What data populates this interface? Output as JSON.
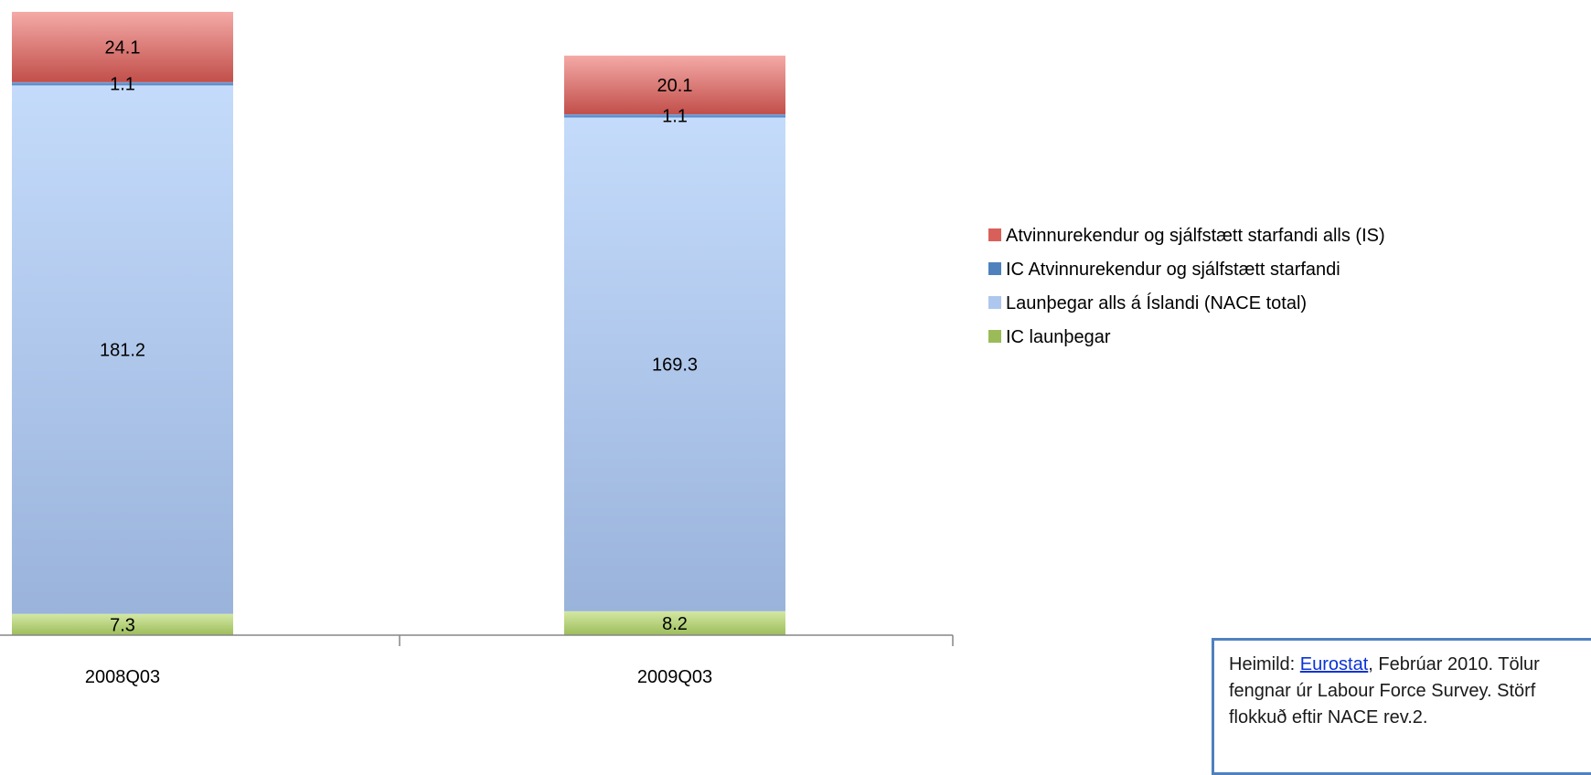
{
  "chart_data": {
    "type": "bar",
    "stacked": true,
    "categories": [
      "2008Q03",
      "2009Q03"
    ],
    "series": [
      {
        "name": "IC launþegar",
        "values": [
          7.3,
          8.2
        ],
        "color": "#9bbb59"
      },
      {
        "name": "Launþegar alls á Íslandi (NACE total)",
        "values": [
          181.2,
          169.3
        ],
        "color": "#aec7ee"
      },
      {
        "name": "IC Atvinnurekendur og sjálfstætt starfandi",
        "values": [
          1.1,
          1.1
        ],
        "color": "#4f81bd"
      },
      {
        "name": "Atvinnurekendur og sjálfstætt starfandi alls (IS)",
        "values": [
          24.1,
          20.1
        ],
        "color": "#d9605a"
      }
    ],
    "data_labels": [
      "7.3",
      "181.2",
      "1.1",
      "24.1",
      "8.2",
      "169.3",
      "1.1",
      "20.1"
    ],
    "legend": [
      "Atvinnurekendur og sjálfstætt starfandi alls (IS)",
      "IC Atvinnurekendur og sjálfstætt starfandi",
      "Launþegar alls á Íslandi (NACE total)",
      "IC launþegar"
    ],
    "legend_position": "right",
    "grid": false,
    "ylim": [
      0,
      214
    ]
  },
  "source_note": {
    "prefix": "Heimild: ",
    "link": "Eurostat",
    "suffix": ", Febrúar 2010. Tölur fengnar úr Labour Force Survey. Störf flokkuð eftir NACE rev.2."
  }
}
